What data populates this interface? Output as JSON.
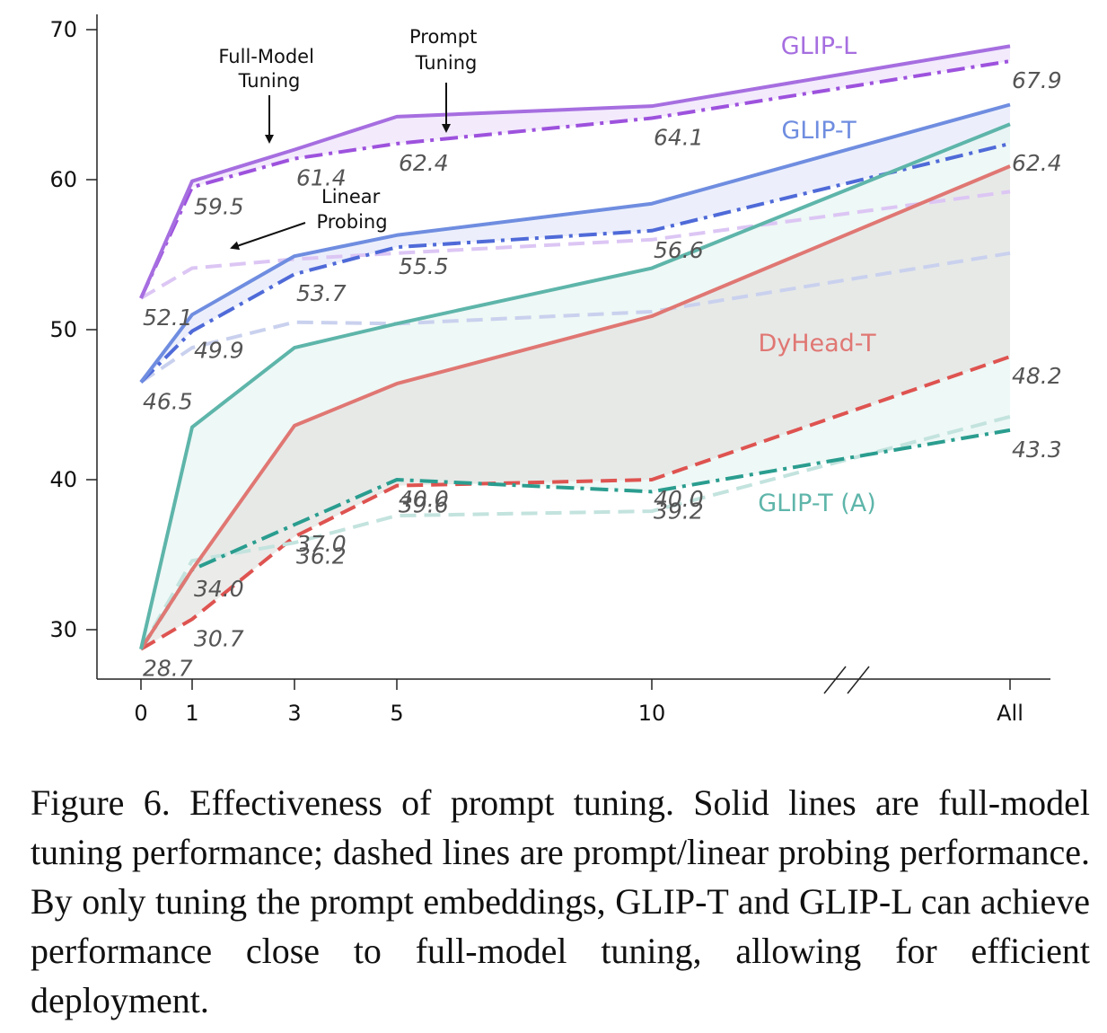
{
  "chart_data": {
    "type": "line",
    "x_categories": [
      "0",
      "1",
      "3",
      "5",
      "10",
      "All"
    ],
    "ylim": [
      27,
      71
    ],
    "yticks": [
      30,
      40,
      50,
      60,
      70
    ],
    "title": "",
    "xlabel": "",
    "ylabel": "",
    "series": [
      {
        "key": "glipl_full",
        "color": "#a66ee0",
        "style": "solid",
        "values": [
          52.1,
          59.9,
          62.0,
          64.2,
          64.9,
          68.9
        ]
      },
      {
        "key": "glipl_prompt",
        "color": "#9d52dd",
        "style": "dashdot",
        "values": [
          52.1,
          59.5,
          61.4,
          62.4,
          64.1,
          67.9
        ]
      },
      {
        "key": "glipl_linear",
        "color": "#dcc6f4",
        "style": "dashed",
        "values": [
          52.1,
          54.1,
          54.7,
          55.1,
          56.0,
          59.2
        ]
      },
      {
        "key": "glipt_full",
        "color": "#6f8de0",
        "style": "solid",
        "values": [
          46.5,
          51.0,
          54.9,
          56.3,
          58.4,
          65.0
        ]
      },
      {
        "key": "glipt_prompt",
        "color": "#4f6ad8",
        "style": "dashdot",
        "values": [
          46.5,
          49.9,
          53.7,
          55.5,
          56.6,
          62.4
        ]
      },
      {
        "key": "glipt_linear",
        "color": "#c9d1ee",
        "style": "dashed",
        "values": [
          46.5,
          48.8,
          50.5,
          50.4,
          51.2,
          55.1
        ]
      },
      {
        "key": "dyhead_full",
        "color": "#e07773",
        "style": "solid",
        "values": [
          28.7,
          34.0,
          43.6,
          46.4,
          50.9,
          60.9
        ]
      },
      {
        "key": "dyhead_prompt",
        "color": "#de5350",
        "style": "dashed",
        "values": [
          28.7,
          30.7,
          36.2,
          39.6,
          40.0,
          48.2
        ]
      },
      {
        "key": "glipta_full",
        "color": "#5eb5aa",
        "style": "solid",
        "values": [
          28.7,
          43.5,
          48.8,
          50.4,
          54.1,
          63.7
        ]
      },
      {
        "key": "glipta_prompt",
        "color": "#2a9d8f",
        "style": "dashdot",
        "values": [
          28.7,
          34.0,
          37.0,
          40.0,
          39.2,
          43.3
        ]
      },
      {
        "key": "glipta_linear",
        "color": "#c3e3de",
        "style": "dashed",
        "values": [
          28.7,
          34.6,
          35.8,
          37.6,
          37.9,
          44.2
        ]
      }
    ],
    "bands": [
      {
        "upper": "glipl_full",
        "lower": "glipl_prompt",
        "color": "#efe3fb"
      },
      {
        "upper": "glipt_full",
        "lower": "glipt_prompt",
        "color": "#e6eafa"
      },
      {
        "upper": "glipta_full",
        "lower": "glipta_prompt",
        "color": "#e8f5f3"
      },
      {
        "upper": "dyhead_full",
        "lower": "dyhead_prompt",
        "color": "#e4e4e2"
      }
    ],
    "data_labels": [
      {
        "text": "67.9",
        "x": 5,
        "y": 67.9
      },
      {
        "text": "64.1",
        "x": 4,
        "y": 64.1
      },
      {
        "text": "62.4",
        "x": 3,
        "y": 62.4
      },
      {
        "text": "61.4",
        "x": 2,
        "y": 61.4
      },
      {
        "text": "59.5",
        "x": 1,
        "y": 59.5
      },
      {
        "text": "52.1",
        "x": 0,
        "y": 52.1
      },
      {
        "text": "62.4",
        "x": 5,
        "y": 62.4
      },
      {
        "text": "56.6",
        "x": 4,
        "y": 56.6
      },
      {
        "text": "55.5",
        "x": 3,
        "y": 55.5
      },
      {
        "text": "53.7",
        "x": 2,
        "y": 53.7
      },
      {
        "text": "49.9",
        "x": 1,
        "y": 49.9
      },
      {
        "text": "46.5",
        "x": 0,
        "y": 46.5
      },
      {
        "text": "48.2",
        "x": 5,
        "y": 48.2
      },
      {
        "text": "40.0",
        "x": 4,
        "y": 40.0
      },
      {
        "text": "39.6",
        "x": 3,
        "y": 39.6
      },
      {
        "text": "36.2",
        "x": 2,
        "y": 36.2
      },
      {
        "text": "30.7",
        "x": 1,
        "y": 30.7
      },
      {
        "text": "43.3",
        "x": 5,
        "y": 43.3
      },
      {
        "text": "39.2",
        "x": 4,
        "y": 39.2
      },
      {
        "text": "40.0",
        "x": 3,
        "y": 40.0
      },
      {
        "text": "37.0",
        "x": 2,
        "y": 37.0
      },
      {
        "text": "34.0",
        "x": 1,
        "y": 34.0
      },
      {
        "text": "28.7",
        "x": 0,
        "y": 28.7
      }
    ],
    "series_labels": [
      {
        "text": "GLIP-L",
        "color": "#a66ee0"
      },
      {
        "text": "GLIP-T",
        "color": "#6f8de0"
      },
      {
        "text": "DyHead-T",
        "color": "#e07773"
      },
      {
        "text": "GLIP-T (A)",
        "color": "#5eb5aa"
      }
    ],
    "annotations": [
      {
        "lines": [
          "Full-Model",
          "Tuning"
        ]
      },
      {
        "lines": [
          "Prompt",
          "Tuning"
        ]
      },
      {
        "lines": [
          "Linear",
          "Probing"
        ]
      }
    ]
  },
  "caption": "Figure 6.  Effectiveness of prompt tuning.  Solid lines are full-model tuning performance; dashed lines are prompt/linear probing performance.  By only tuning the prompt embeddings, GLIP-T and GLIP-L can achieve performance close to full-model tuning, allowing for efficient deployment."
}
